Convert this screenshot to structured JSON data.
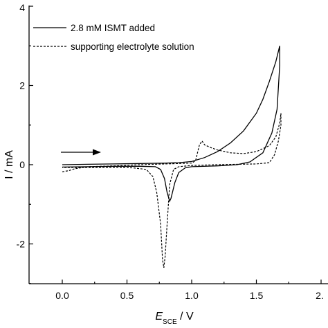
{
  "chart_data": {
    "type": "line",
    "title": "",
    "xlabel": {
      "main": "E",
      "sub": "SCE",
      "unit": " / V"
    },
    "ylabel": "I / mA",
    "xlim": [
      -0.2,
      2.0
    ],
    "ylim": [
      -3.0,
      4.0
    ],
    "x_ticks": [
      0.0,
      0.5,
      1.0,
      1.5,
      2.0
    ],
    "x_tick_labels": [
      "0.0",
      "0.5",
      "1.0",
      "1.5",
      "2."
    ],
    "y_ticks": [
      -2,
      0,
      2,
      4
    ],
    "y_tick_labels": [
      "-2",
      "0",
      "2",
      "4"
    ],
    "grid": false,
    "legend_position": "top-left",
    "annotation": "scan-direction arrow pointing right",
    "series": [
      {
        "name": "2.8 mM ISMT added",
        "style": "solid",
        "points": [
          [
            0.0,
            0.0
          ],
          [
            0.2,
            0.01
          ],
          [
            0.4,
            0.02
          ],
          [
            0.6,
            0.03
          ],
          [
            0.8,
            0.04
          ],
          [
            0.9,
            0.05
          ],
          [
            1.0,
            0.08
          ],
          [
            1.1,
            0.18
          ],
          [
            1.2,
            0.33
          ],
          [
            1.3,
            0.55
          ],
          [
            1.4,
            0.85
          ],
          [
            1.5,
            1.3
          ],
          [
            1.55,
            1.65
          ],
          [
            1.6,
            2.1
          ],
          [
            1.65,
            2.6
          ],
          [
            1.68,
            3.0
          ],
          [
            1.68,
            2.5
          ],
          [
            1.66,
            1.4
          ],
          [
            1.62,
            0.8
          ],
          [
            1.55,
            0.3
          ],
          [
            1.45,
            0.07
          ],
          [
            1.35,
            0.0
          ],
          [
            1.2,
            -0.03
          ],
          [
            1.0,
            -0.05
          ],
          [
            0.95,
            -0.08
          ],
          [
            0.9,
            -0.2
          ],
          [
            0.87,
            -0.45
          ],
          [
            0.84,
            -0.85
          ],
          [
            0.83,
            -0.92
          ],
          [
            0.81,
            -0.7
          ],
          [
            0.79,
            -0.35
          ],
          [
            0.76,
            -0.12
          ],
          [
            0.72,
            -0.05
          ],
          [
            0.6,
            -0.04
          ],
          [
            0.4,
            -0.04
          ],
          [
            0.2,
            -0.05
          ],
          [
            0.0,
            -0.06
          ]
        ]
      },
      {
        "name": "supporting electrolyte solution",
        "style": "dashed",
        "points": [
          [
            0.0,
            -0.18
          ],
          [
            0.05,
            -0.15
          ],
          [
            0.1,
            -0.1
          ],
          [
            0.2,
            -0.05
          ],
          [
            0.4,
            -0.03
          ],
          [
            0.6,
            0.0
          ],
          [
            0.8,
            0.02
          ],
          [
            1.0,
            0.04
          ],
          [
            1.03,
            0.1
          ],
          [
            1.06,
            0.5
          ],
          [
            1.08,
            0.6
          ],
          [
            1.1,
            0.5
          ],
          [
            1.15,
            0.43
          ],
          [
            1.2,
            0.37
          ],
          [
            1.3,
            0.3
          ],
          [
            1.4,
            0.28
          ],
          [
            1.5,
            0.33
          ],
          [
            1.6,
            0.48
          ],
          [
            1.65,
            0.7
          ],
          [
            1.68,
            1.05
          ],
          [
            1.69,
            1.3
          ],
          [
            1.69,
            1.0
          ],
          [
            1.67,
            0.6
          ],
          [
            1.64,
            0.25
          ],
          [
            1.6,
            0.05
          ],
          [
            1.5,
            0.02
          ],
          [
            1.2,
            0.0
          ],
          [
            1.0,
            -0.02
          ],
          [
            0.9,
            -0.05
          ],
          [
            0.86,
            -0.12
          ],
          [
            0.83,
            -0.5
          ],
          [
            0.81,
            -1.5
          ],
          [
            0.795,
            -2.3
          ],
          [
            0.785,
            -2.6
          ],
          [
            0.775,
            -2.4
          ],
          [
            0.76,
            -1.5
          ],
          [
            0.73,
            -0.7
          ],
          [
            0.7,
            -0.3
          ],
          [
            0.65,
            -0.12
          ],
          [
            0.55,
            -0.08
          ],
          [
            0.4,
            -0.07
          ],
          [
            0.2,
            -0.07
          ],
          [
            0.0,
            -0.07
          ]
        ]
      }
    ]
  }
}
